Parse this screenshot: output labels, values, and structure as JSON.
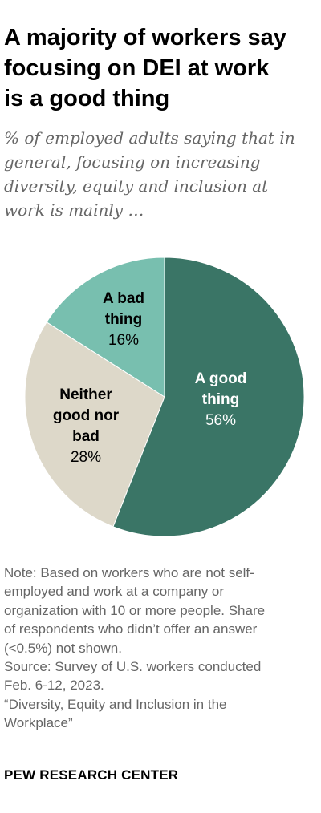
{
  "title": {
    "lines": [
      "A majority of workers say",
      "focusing on DEI at work",
      "is a good thing"
    ]
  },
  "subtitle": {
    "lines": [
      "% of employed adults saying that in",
      "general, focusing on increasing",
      "diversity, equity and inclusion at",
      "work is mainly …"
    ]
  },
  "chart_data": {
    "type": "pie",
    "title": "A majority of workers say focusing on DEI at work is a good thing",
    "subtitle": "% of employed adults saying that in general, focusing on increasing diversity, equity and inclusion at work is mainly …",
    "start_angle_deg": 0,
    "direction": "clockwise",
    "slices": [
      {
        "name": "A good thing",
        "label_lines": [
          "A good",
          "thing"
        ],
        "value": 56,
        "value_label": "56%",
        "color": "#3a7566",
        "text_color": "#ffffff",
        "value_text_color": "#ffffff"
      },
      {
        "name": "Neither good nor bad",
        "label_lines": [
          "Neither",
          "good nor",
          "bad"
        ],
        "value": 28,
        "value_label": "28%",
        "color": "#ddd8c9",
        "text_color": "#000000",
        "value_text_color": "#000000"
      },
      {
        "name": "A bad thing",
        "label_lines": [
          "A bad",
          "thing"
        ],
        "value": 16,
        "value_label": "16%",
        "color": "#78bfaf",
        "text_color": "#000000",
        "value_text_color": "#000000"
      }
    ]
  },
  "note": {
    "lines": [
      "Note: Based on workers who are not self-",
      "employed and work at a company or",
      "organization with 10 or more people. Share",
      "of respondents who didn’t offer an answer",
      "(<0.5%) not shown.",
      "Source: Survey of U.S. workers conducted",
      "Feb. 6-12, 2023.",
      "“Diversity, Equity and Inclusion in the",
      "Workplace”"
    ]
  },
  "footer": {
    "source_org": "PEW RESEARCH CENTER"
  },
  "colors": {
    "good": "#3a7566",
    "neither": "#ddd8c9",
    "bad": "#78bfaf",
    "subtitle": "#666666",
    "note": "#666666"
  }
}
